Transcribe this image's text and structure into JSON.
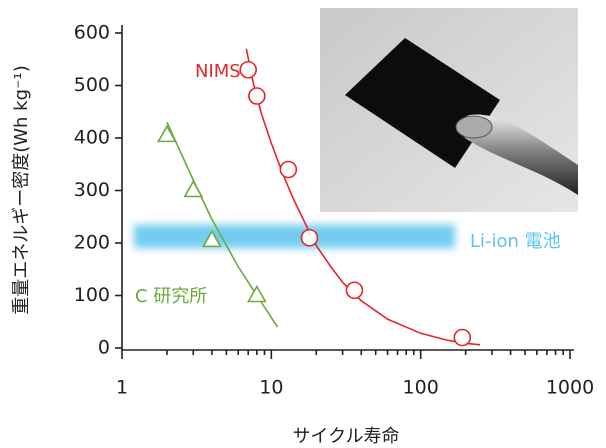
{
  "chart_data": {
    "type": "scatter",
    "xlabel": "サイクル寿命",
    "ylabel": "重量エネルギー密度(Wh kg⁻¹)",
    "xscale": "log",
    "xlim": [
      1,
      1000
    ],
    "ylim": [
      0,
      600
    ],
    "xticks": [
      1,
      10,
      100,
      1000
    ],
    "xminorticks": [
      2,
      3,
      4,
      5,
      6,
      7,
      8,
      9,
      20,
      30,
      40,
      50,
      60,
      70,
      80,
      90,
      200,
      300,
      400,
      500,
      600,
      700,
      800,
      900
    ],
    "yticks": [
      0,
      100,
      200,
      300,
      400,
      500,
      600
    ],
    "series": [
      {
        "name": "NIMS",
        "color": "#e5262b",
        "marker": "circle",
        "x": [
          7,
          8,
          13,
          18,
          36,
          190
        ],
        "values": [
          530,
          480,
          340,
          210,
          110,
          20
        ],
        "fit": {
          "x": [
            6.8,
            7.5,
            8.5,
            10,
            12,
            14,
            17,
            20,
            25,
            30,
            40,
            60,
            100,
            150,
            200,
            250
          ],
          "values": [
            570,
            510,
            450,
            390,
            330,
            285,
            235,
            195,
            155,
            125,
            90,
            55,
            28,
            15,
            9,
            6
          ]
        }
      },
      {
        "name": "C 研究所",
        "color": "#6aab3c",
        "marker": "triangle",
        "x": [
          2,
          3,
          4,
          8
        ],
        "values": [
          405,
          300,
          205,
          100
        ],
        "fit": {
          "x": [
            2,
            3,
            4,
            6,
            8,
            11
          ],
          "values": [
            430,
            320,
            245,
            155,
            100,
            40
          ]
        }
      }
    ],
    "band": {
      "label": "Li-ion 電池",
      "color": "#5bc3ee",
      "x": [
        1.2,
        170
      ],
      "y": [
        190,
        235
      ]
    }
  }
}
